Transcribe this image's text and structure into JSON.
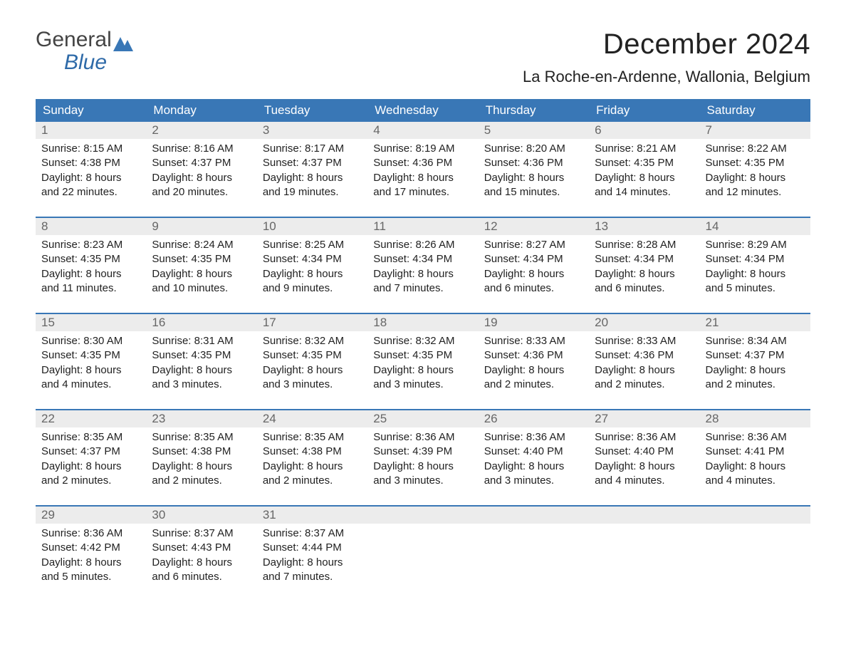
{
  "brand": {
    "top": "General",
    "bottom": "Blue"
  },
  "title": "December 2024",
  "subtitle": "La Roche-en-Ardenne, Wallonia, Belgium",
  "weekdays": [
    "Sunday",
    "Monday",
    "Tuesday",
    "Wednesday",
    "Thursday",
    "Friday",
    "Saturday"
  ],
  "colors": {
    "header_bg": "#3977b6",
    "header_text": "#ffffff",
    "daynum_bg": "#ececec",
    "daynum_text": "#666666",
    "body_text": "#222222",
    "rule": "#3977b6"
  },
  "weeks": [
    [
      {
        "n": "1",
        "sr": "Sunrise: 8:15 AM",
        "ss": "Sunset: 4:38 PM",
        "d1": "Daylight: 8 hours",
        "d2": "and 22 minutes."
      },
      {
        "n": "2",
        "sr": "Sunrise: 8:16 AM",
        "ss": "Sunset: 4:37 PM",
        "d1": "Daylight: 8 hours",
        "d2": "and 20 minutes."
      },
      {
        "n": "3",
        "sr": "Sunrise: 8:17 AM",
        "ss": "Sunset: 4:37 PM",
        "d1": "Daylight: 8 hours",
        "d2": "and 19 minutes."
      },
      {
        "n": "4",
        "sr": "Sunrise: 8:19 AM",
        "ss": "Sunset: 4:36 PM",
        "d1": "Daylight: 8 hours",
        "d2": "and 17 minutes."
      },
      {
        "n": "5",
        "sr": "Sunrise: 8:20 AM",
        "ss": "Sunset: 4:36 PM",
        "d1": "Daylight: 8 hours",
        "d2": "and 15 minutes."
      },
      {
        "n": "6",
        "sr": "Sunrise: 8:21 AM",
        "ss": "Sunset: 4:35 PM",
        "d1": "Daylight: 8 hours",
        "d2": "and 14 minutes."
      },
      {
        "n": "7",
        "sr": "Sunrise: 8:22 AM",
        "ss": "Sunset: 4:35 PM",
        "d1": "Daylight: 8 hours",
        "d2": "and 12 minutes."
      }
    ],
    [
      {
        "n": "8",
        "sr": "Sunrise: 8:23 AM",
        "ss": "Sunset: 4:35 PM",
        "d1": "Daylight: 8 hours",
        "d2": "and 11 minutes."
      },
      {
        "n": "9",
        "sr": "Sunrise: 8:24 AM",
        "ss": "Sunset: 4:35 PM",
        "d1": "Daylight: 8 hours",
        "d2": "and 10 minutes."
      },
      {
        "n": "10",
        "sr": "Sunrise: 8:25 AM",
        "ss": "Sunset: 4:34 PM",
        "d1": "Daylight: 8 hours",
        "d2": "and 9 minutes."
      },
      {
        "n": "11",
        "sr": "Sunrise: 8:26 AM",
        "ss": "Sunset: 4:34 PM",
        "d1": "Daylight: 8 hours",
        "d2": "and 7 minutes."
      },
      {
        "n": "12",
        "sr": "Sunrise: 8:27 AM",
        "ss": "Sunset: 4:34 PM",
        "d1": "Daylight: 8 hours",
        "d2": "and 6 minutes."
      },
      {
        "n": "13",
        "sr": "Sunrise: 8:28 AM",
        "ss": "Sunset: 4:34 PM",
        "d1": "Daylight: 8 hours",
        "d2": "and 6 minutes."
      },
      {
        "n": "14",
        "sr": "Sunrise: 8:29 AM",
        "ss": "Sunset: 4:34 PM",
        "d1": "Daylight: 8 hours",
        "d2": "and 5 minutes."
      }
    ],
    [
      {
        "n": "15",
        "sr": "Sunrise: 8:30 AM",
        "ss": "Sunset: 4:35 PM",
        "d1": "Daylight: 8 hours",
        "d2": "and 4 minutes."
      },
      {
        "n": "16",
        "sr": "Sunrise: 8:31 AM",
        "ss": "Sunset: 4:35 PM",
        "d1": "Daylight: 8 hours",
        "d2": "and 3 minutes."
      },
      {
        "n": "17",
        "sr": "Sunrise: 8:32 AM",
        "ss": "Sunset: 4:35 PM",
        "d1": "Daylight: 8 hours",
        "d2": "and 3 minutes."
      },
      {
        "n": "18",
        "sr": "Sunrise: 8:32 AM",
        "ss": "Sunset: 4:35 PM",
        "d1": "Daylight: 8 hours",
        "d2": "and 3 minutes."
      },
      {
        "n": "19",
        "sr": "Sunrise: 8:33 AM",
        "ss": "Sunset: 4:36 PM",
        "d1": "Daylight: 8 hours",
        "d2": "and 2 minutes."
      },
      {
        "n": "20",
        "sr": "Sunrise: 8:33 AM",
        "ss": "Sunset: 4:36 PM",
        "d1": "Daylight: 8 hours",
        "d2": "and 2 minutes."
      },
      {
        "n": "21",
        "sr": "Sunrise: 8:34 AM",
        "ss": "Sunset: 4:37 PM",
        "d1": "Daylight: 8 hours",
        "d2": "and 2 minutes."
      }
    ],
    [
      {
        "n": "22",
        "sr": "Sunrise: 8:35 AM",
        "ss": "Sunset: 4:37 PM",
        "d1": "Daylight: 8 hours",
        "d2": "and 2 minutes."
      },
      {
        "n": "23",
        "sr": "Sunrise: 8:35 AM",
        "ss": "Sunset: 4:38 PM",
        "d1": "Daylight: 8 hours",
        "d2": "and 2 minutes."
      },
      {
        "n": "24",
        "sr": "Sunrise: 8:35 AM",
        "ss": "Sunset: 4:38 PM",
        "d1": "Daylight: 8 hours",
        "d2": "and 2 minutes."
      },
      {
        "n": "25",
        "sr": "Sunrise: 8:36 AM",
        "ss": "Sunset: 4:39 PM",
        "d1": "Daylight: 8 hours",
        "d2": "and 3 minutes."
      },
      {
        "n": "26",
        "sr": "Sunrise: 8:36 AM",
        "ss": "Sunset: 4:40 PM",
        "d1": "Daylight: 8 hours",
        "d2": "and 3 minutes."
      },
      {
        "n": "27",
        "sr": "Sunrise: 8:36 AM",
        "ss": "Sunset: 4:40 PM",
        "d1": "Daylight: 8 hours",
        "d2": "and 4 minutes."
      },
      {
        "n": "28",
        "sr": "Sunrise: 8:36 AM",
        "ss": "Sunset: 4:41 PM",
        "d1": "Daylight: 8 hours",
        "d2": "and 4 minutes."
      }
    ],
    [
      {
        "n": "29",
        "sr": "Sunrise: 8:36 AM",
        "ss": "Sunset: 4:42 PM",
        "d1": "Daylight: 8 hours",
        "d2": "and 5 minutes."
      },
      {
        "n": "30",
        "sr": "Sunrise: 8:37 AM",
        "ss": "Sunset: 4:43 PM",
        "d1": "Daylight: 8 hours",
        "d2": "and 6 minutes."
      },
      {
        "n": "31",
        "sr": "Sunrise: 8:37 AM",
        "ss": "Sunset: 4:44 PM",
        "d1": "Daylight: 8 hours",
        "d2": "and 7 minutes."
      },
      null,
      null,
      null,
      null
    ]
  ]
}
